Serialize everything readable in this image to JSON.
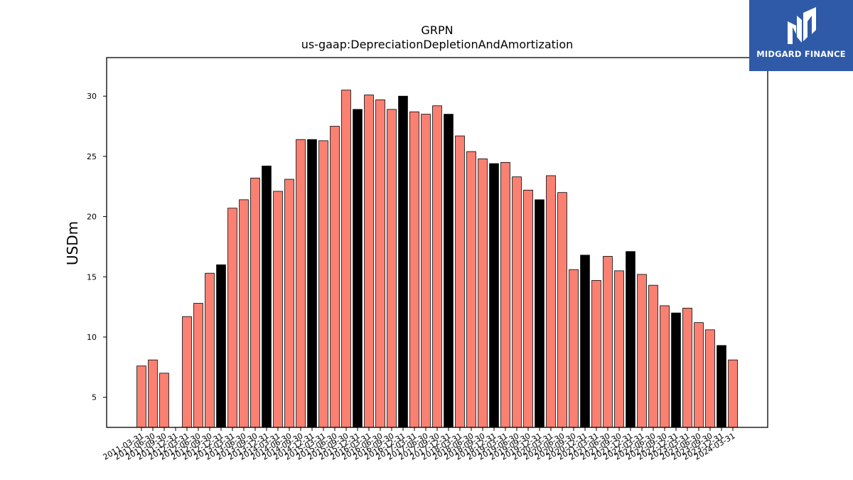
{
  "chart_data": {
    "type": "bar",
    "title": "GRPN",
    "subtitle": "us-gaap:DepreciationDepletionAndAmortization",
    "xlabel": "",
    "ylabel": "USDm",
    "ylim": [
      2.5,
      33.2
    ],
    "yticks": [
      5,
      10,
      15,
      20,
      25,
      30
    ],
    "categories": [
      "2011-03-31",
      "2011-06-30",
      "2011-09-30",
      "2011-12-31",
      "2012-03-31",
      "2012-06-30",
      "2012-09-30",
      "2012-12-31",
      "2013-03-31",
      "2013-06-30",
      "2013-09-30",
      "2013-12-31",
      "2014-03-31",
      "2014-06-30",
      "2014-09-30",
      "2014-12-31",
      "2015-03-31",
      "2015-06-30",
      "2015-09-30",
      "2015-12-31",
      "2016-03-31",
      "2016-06-30",
      "2016-09-30",
      "2016-12-31",
      "2017-03-31",
      "2017-06-30",
      "2017-09-30",
      "2017-12-31",
      "2018-03-31",
      "2018-06-30",
      "2018-09-30",
      "2018-12-31",
      "2019-03-31",
      "2019-06-30",
      "2019-09-30",
      "2019-12-31",
      "2020-03-31",
      "2020-06-30",
      "2020-09-30",
      "2020-12-31",
      "2021-03-31",
      "2021-06-30",
      "2021-09-30",
      "2021-12-31",
      "2022-03-31",
      "2022-06-30",
      "2022-09-30",
      "2022-12-31",
      "2023-03-31",
      "2023-06-30",
      "2023-09-30",
      "2023-12-31",
      "2024-03-31"
    ],
    "tick_labels": [
      "2011-03-31",
      "2011-06-30",
      "2011-09-30",
      "2011-12-31",
      "2012-03-31",
      "2012-06-30",
      "2012-09-30",
      "2012-12-31",
      "2013-03-31",
      "2013-06-30",
      "2013-09-30",
      "2013-12-31",
      "2014-03-31",
      "2014-06-30",
      "2014-09-30",
      "2014-12-31",
      "2015-03-31",
      "2015-06-30",
      "2015-09-30",
      "2015-12-31",
      "2016-03-31",
      "2016-06-30",
      "2016-09-30",
      "2016-12-31",
      "2017-03-31",
      "2017-06-30",
      "2017-09-30",
      "2017-12-31",
      "2018-03-31",
      "2018-06-30",
      "2018-09-30",
      "2018-12-31",
      "2019-03-31",
      "2019-06-30",
      "2019-09-30",
      "2019-12-31",
      "2020-03-31",
      "2020-06-30",
      "2020-09-30",
      "2020-12-31",
      "2021-03-31",
      "2021-06-30",
      "2021-09-30",
      "2021-12-31",
      "2022-03-31",
      "2022-06-30",
      "2022-09-30",
      "2022-12-31",
      "2023-03-31",
      "2023-06-30",
      "2023-09-30",
      "2023-12-31",
      "2024-03-31"
    ],
    "values": [
      7.6,
      8.1,
      7.0,
      null,
      11.7,
      12.8,
      15.3,
      16.0,
      20.7,
      21.4,
      23.2,
      24.2,
      22.1,
      23.1,
      26.4,
      26.4,
      26.3,
      27.5,
      30.5,
      28.9,
      30.1,
      29.7,
      28.9,
      30.0,
      28.7,
      28.5,
      29.2,
      28.5,
      26.7,
      25.4,
      24.8,
      24.4,
      24.5,
      23.3,
      22.2,
      21.4,
      23.4,
      22.0,
      15.6,
      16.8,
      14.7,
      16.7,
      15.5,
      17.1,
      15.2,
      14.3,
      12.6,
      12.0,
      12.4,
      11.2,
      10.6,
      9.3,
      8.1
    ],
    "highlight": [
      false,
      false,
      false,
      false,
      false,
      false,
      false,
      true,
      false,
      false,
      false,
      true,
      false,
      false,
      false,
      true,
      false,
      false,
      false,
      true,
      false,
      false,
      false,
      true,
      false,
      false,
      false,
      true,
      false,
      false,
      false,
      true,
      false,
      false,
      false,
      true,
      false,
      false,
      false,
      true,
      false,
      false,
      false,
      true,
      false,
      false,
      false,
      true,
      false,
      false,
      false,
      true,
      false
    ],
    "colors": {
      "bar": "#fa8072",
      "highlight": "#000000",
      "edge": "#000000"
    },
    "grid": false,
    "legend": "none"
  },
  "logo": {
    "text": "MIDGARD FINANCE",
    "background": "#2f5aa8"
  }
}
